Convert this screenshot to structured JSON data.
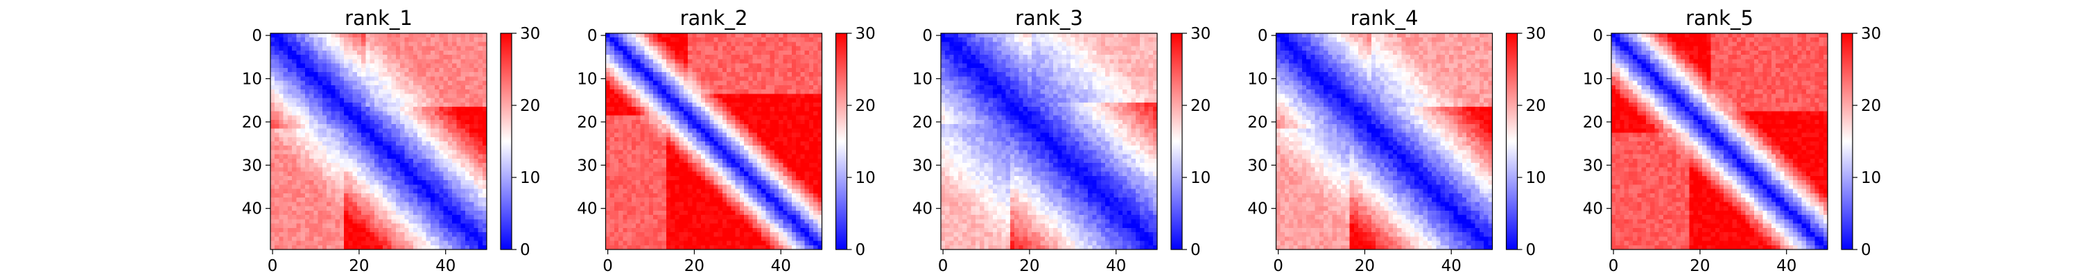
{
  "chart_data": [
    {
      "type": "heatmap",
      "title": "rank_1",
      "size": 50,
      "x_ticks": [
        0,
        20,
        40
      ],
      "y_ticks": [
        0,
        10,
        20,
        30,
        40
      ],
      "colorbar": {
        "range": [
          0,
          30
        ],
        "ticks": [
          0,
          10,
          20,
          30
        ],
        "colormap": "bwr",
        "center": 15
      },
      "pattern": {
        "diag_value": 0,
        "far_value": 30,
        "ramp_width": 25,
        "block_at": 15,
        "block_fill": 12
      }
    },
    {
      "type": "heatmap",
      "title": "rank_2",
      "size": 50,
      "x_ticks": [
        0,
        20,
        40
      ],
      "y_ticks": [
        0,
        10,
        20,
        30,
        40
      ],
      "colorbar": {
        "range": [
          0,
          30
        ],
        "ticks": [
          0,
          10,
          20,
          30
        ],
        "colormap": "bwr",
        "center": 15
      },
      "pattern": {
        "diag_value": 0,
        "far_value": 30,
        "ramp_width": 12,
        "block_at": 12,
        "block_fill": 17
      }
    },
    {
      "type": "heatmap",
      "title": "rank_3",
      "size": 50,
      "x_ticks": [
        0,
        20,
        40
      ],
      "y_ticks": [
        0,
        10,
        20,
        30,
        40
      ],
      "colorbar": {
        "range": [
          0,
          30
        ],
        "ticks": [
          0,
          10,
          20,
          30
        ],
        "colormap": "bwr",
        "center": 15
      },
      "pattern": {
        "diag_value": 0,
        "far_value": 30,
        "ramp_width": 35,
        "block_at": 14,
        "block_fill": 6
      }
    },
    {
      "type": "heatmap",
      "title": "rank_4",
      "size": 50,
      "x_ticks": [
        0,
        20,
        40
      ],
      "y_ticks": [
        0,
        10,
        20,
        30,
        40
      ],
      "colorbar": {
        "range": [
          0,
          30
        ],
        "ticks": [
          0,
          10,
          20,
          30
        ],
        "colormap": "bwr",
        "center": 15
      },
      "pattern": {
        "diag_value": 0,
        "far_value": 30,
        "ramp_width": 28,
        "block_at": 15,
        "block_fill": 9
      }
    },
    {
      "type": "heatmap",
      "title": "rank_5",
      "size": 50,
      "x_ticks": [
        0,
        20,
        40
      ],
      "y_ticks": [
        0,
        10,
        20,
        30,
        40
      ],
      "colorbar": {
        "range": [
          0,
          30
        ],
        "ticks": [
          0,
          10,
          20,
          30
        ],
        "colormap": "bwr",
        "center": 15
      },
      "pattern": {
        "diag_value": 0,
        "far_value": 30,
        "ramp_width": 13,
        "block_at": 16,
        "block_fill": 18
      }
    }
  ]
}
